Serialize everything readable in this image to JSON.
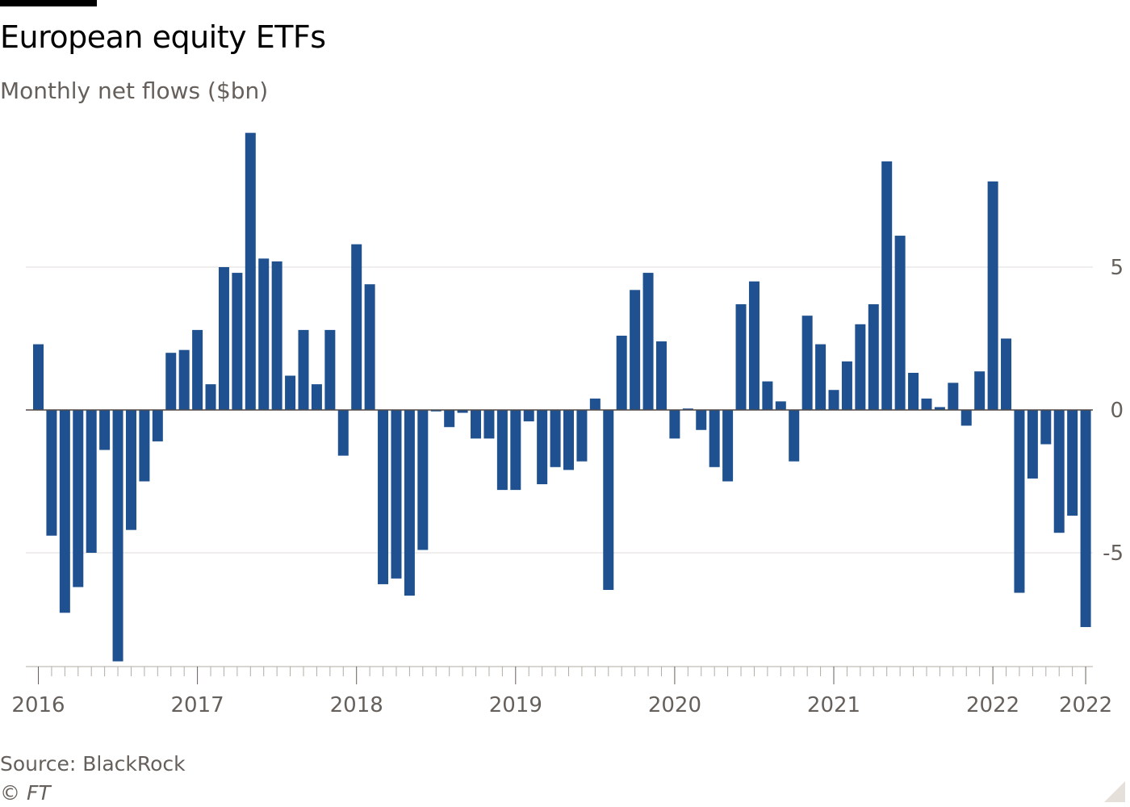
{
  "header": {
    "title": "European equity ETFs",
    "subtitle": "Monthly net flows ($bn)"
  },
  "footer": {
    "source": "Source: BlackRock",
    "credit": "© FT"
  },
  "colors": {
    "bar": "#1f5190",
    "grid": "#e0dcd8",
    "zero_line": "#4d4845",
    "axis_text": "#66605c"
  },
  "chart_data": {
    "type": "bar",
    "title": "European equity ETFs",
    "subtitle": "Monthly net flows ($bn)",
    "ylim": [
      -9,
      10
    ],
    "y_ticks": [
      5,
      0,
      -5
    ],
    "y_tick_labels": [
      "5",
      "0",
      "-5"
    ],
    "y_axis_position": "right",
    "grid": true,
    "x_tick_labels": [
      {
        "index": 0,
        "label": "2016"
      },
      {
        "index": 12,
        "label": "2017"
      },
      {
        "index": 24,
        "label": "2018"
      },
      {
        "index": 36,
        "label": "2019"
      },
      {
        "index": 48,
        "label": "2020"
      },
      {
        "index": 60,
        "label": "2021"
      },
      {
        "index": 72,
        "label": "2022"
      },
      {
        "index": 79,
        "label": "2022"
      }
    ],
    "values": [
      2.3,
      -4.4,
      -7.1,
      -6.2,
      -5.0,
      -1.4,
      -8.8,
      -4.2,
      -2.5,
      -1.1,
      2.0,
      2.1,
      2.8,
      0.9,
      5.0,
      4.8,
      9.7,
      5.3,
      5.2,
      1.2,
      2.8,
      0.9,
      2.8,
      -1.6,
      5.8,
      4.4,
      -6.1,
      -5.9,
      -6.5,
      -4.9,
      -0.05,
      -0.6,
      -0.1,
      -1.0,
      -1.0,
      -2.8,
      -2.8,
      -0.4,
      -2.6,
      -2.0,
      -2.1,
      -1.8,
      0.4,
      -6.3,
      2.6,
      4.2,
      4.8,
      2.4,
      -1.0,
      0.05,
      -0.7,
      -2.0,
      -2.5,
      3.7,
      4.5,
      1.0,
      0.3,
      -1.8,
      3.3,
      2.3,
      0.7,
      1.7,
      3.0,
      3.7,
      8.7,
      6.1,
      1.3,
      0.4,
      0.1,
      0.95,
      -0.55,
      1.35,
      8.0,
      2.5,
      -6.4,
      -2.4,
      -1.2,
      -4.3,
      -3.7,
      -7.6
    ]
  }
}
